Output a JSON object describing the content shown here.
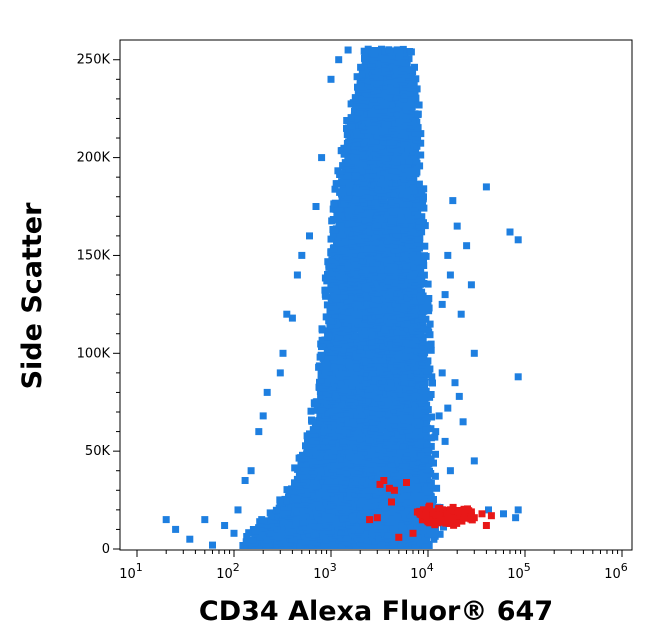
{
  "chart_data": {
    "type": "scatter",
    "title": "",
    "xlabel": "CD34 Alexa Fluor® 647",
    "ylabel": "Side Scatter",
    "x_scale": "log",
    "xlim": [
      10,
      1000000
    ],
    "ylim": [
      0,
      256000
    ],
    "x_tick_labels": [
      {
        "base": "10",
        "exp": "1",
        "value": 10
      },
      {
        "base": "10",
        "exp": "2",
        "value": 100
      },
      {
        "base": "10",
        "exp": "3",
        "value": 1000
      },
      {
        "base": "10",
        "exp": "4",
        "value": 10000
      },
      {
        "base": "10",
        "exp": "5",
        "value": 100000
      },
      {
        "base": "10",
        "exp": "6",
        "value": 1000000
      }
    ],
    "y_ticks": [
      {
        "label": "0",
        "value": 0
      },
      {
        "label": "50K",
        "value": 50000
      },
      {
        "label": "100K",
        "value": 100000
      },
      {
        "label": "150K",
        "value": 150000
      },
      {
        "label": "200K",
        "value": 200000
      },
      {
        "label": "250K",
        "value": 250000
      }
    ],
    "grid": false,
    "legend": "none",
    "series": [
      {
        "color": "#1e7fe0",
        "population_shape": [
          {
            "y": 3000,
            "x_low": 150,
            "x_high": 9000
          },
          {
            "y": 10000,
            "x_low": 180,
            "x_high": 12000
          },
          {
            "y": 20000,
            "x_low": 300,
            "x_high": 11000
          },
          {
            "y": 40000,
            "x_low": 500,
            "x_high": 10000
          },
          {
            "y": 60000,
            "x_low": 700,
            "x_high": 9500
          },
          {
            "y": 90000,
            "x_low": 900,
            "x_high": 9000
          },
          {
            "y": 120000,
            "x_low": 1000,
            "x_high": 8500
          },
          {
            "y": 150000,
            "x_low": 1100,
            "x_high": 8000
          },
          {
            "y": 180000,
            "x_low": 1300,
            "x_high": 7500
          },
          {
            "y": 210000,
            "x_low": 1600,
            "x_high": 7000
          },
          {
            "y": 235000,
            "x_low": 2000,
            "x_high": 6500
          },
          {
            "y": 255000,
            "x_low": 2400,
            "x_high": 5500
          }
        ],
        "outliers": [
          [
            20,
            15000
          ],
          [
            25,
            10000
          ],
          [
            35,
            5000
          ],
          [
            50,
            15000
          ],
          [
            60,
            2000
          ],
          [
            80,
            12000
          ],
          [
            100,
            8000
          ],
          [
            110,
            20000
          ],
          [
            130,
            35000
          ],
          [
            150,
            40000
          ],
          [
            180,
            60000
          ],
          [
            220,
            80000
          ],
          [
            200,
            68000
          ],
          [
            300,
            90000
          ],
          [
            320,
            100000
          ],
          [
            400,
            118000
          ],
          [
            350,
            120000
          ],
          [
            450,
            140000
          ],
          [
            500,
            150000
          ],
          [
            600,
            160000
          ],
          [
            700,
            175000
          ],
          [
            800,
            200000
          ],
          [
            1000,
            240000
          ],
          [
            1200,
            250000
          ],
          [
            1500,
            255000
          ],
          [
            14000,
            125000
          ],
          [
            15000,
            130000
          ],
          [
            16000,
            150000
          ],
          [
            17000,
            140000
          ],
          [
            20000,
            165000
          ],
          [
            18000,
            178000
          ],
          [
            25000,
            155000
          ],
          [
            40000,
            185000
          ],
          [
            30000,
            100000
          ],
          [
            28000,
            135000
          ],
          [
            22000,
            120000
          ],
          [
            19000,
            85000
          ],
          [
            21000,
            78000
          ],
          [
            16000,
            72000
          ],
          [
            15000,
            55000
          ],
          [
            23000,
            65000
          ],
          [
            30000,
            45000
          ],
          [
            42000,
            20000
          ],
          [
            60000,
            18000
          ],
          [
            70000,
            162000
          ],
          [
            85000,
            158000
          ],
          [
            85000,
            88000
          ],
          [
            85000,
            20000
          ],
          [
            80000,
            16000
          ],
          [
            14000,
            90000
          ],
          [
            12000,
            60000
          ],
          [
            13000,
            68000
          ],
          [
            17000,
            40000
          ]
        ]
      },
      {
        "color": "#e81818",
        "cluster": {
          "x_low": 5000,
          "x_high": 45000,
          "y_low": 11000,
          "y_high": 24000,
          "x_center": 15000,
          "y_center": 17000
        },
        "points": [
          [
            3200,
            33000
          ],
          [
            3500,
            35000
          ],
          [
            4000,
            31000
          ],
          [
            4500,
            30000
          ],
          [
            6000,
            34000
          ],
          [
            4200,
            24000
          ],
          [
            3000,
            16000
          ],
          [
            2500,
            15000
          ],
          [
            5000,
            6000
          ],
          [
            7000,
            8000
          ],
          [
            40000,
            12000
          ],
          [
            36000,
            18000
          ],
          [
            30000,
            16000
          ],
          [
            45000,
            17000
          ]
        ]
      }
    ]
  }
}
